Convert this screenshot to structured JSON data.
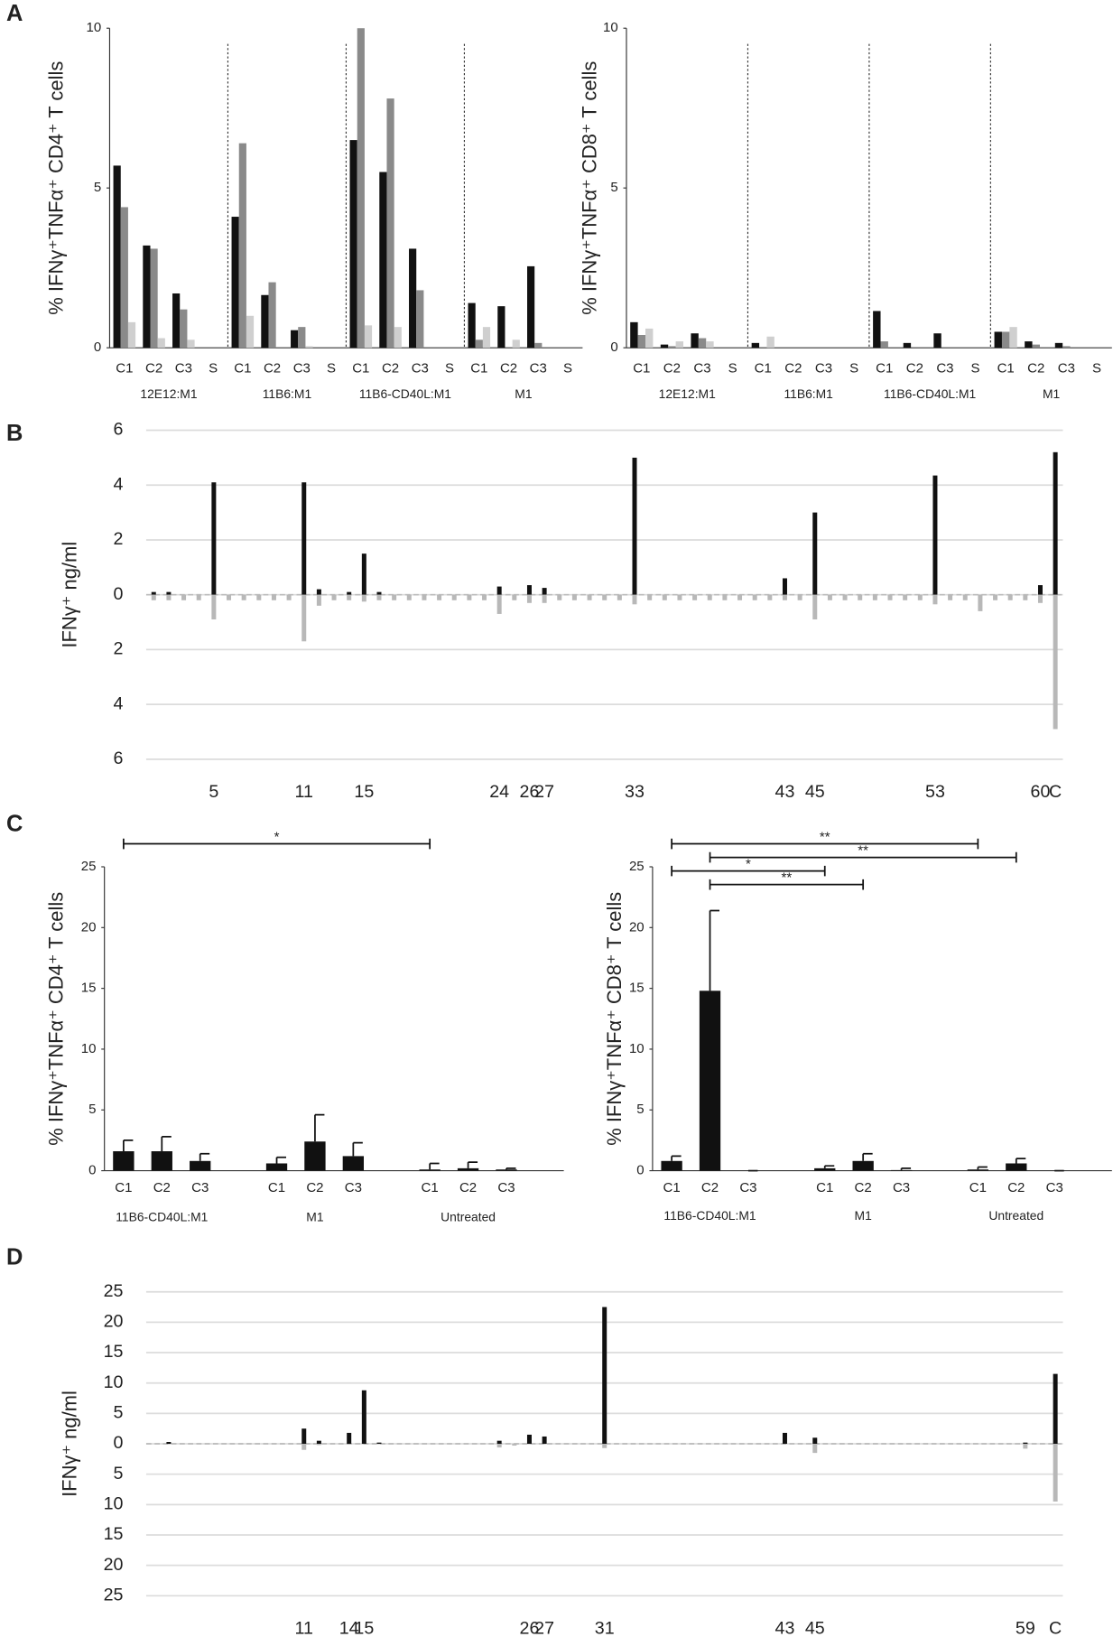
{
  "panel_labels": [
    "A",
    "B",
    "C",
    "D"
  ],
  "chart_data": [
    {
      "type": "bar",
      "ylabel": "% IFNγ⁺TNFα⁺ CD4⁺ T cells",
      "groups": [
        "12E12:M1",
        "11B6:M1",
        "11B6-CD40L:M1",
        "M1"
      ],
      "categories": [
        "C1",
        "C2",
        "C3",
        "S",
        "C1",
        "C2",
        "C3",
        "S",
        "C1",
        "C2",
        "C3",
        "S",
        "C1",
        "C2",
        "C3",
        "S"
      ],
      "ylim": [
        0,
        10
      ],
      "yticks": [
        0,
        5,
        10
      ],
      "series": [
        {
          "color": "#111111",
          "values": [
            5.7,
            3.2,
            1.7,
            0,
            4.1,
            1.65,
            0.55,
            0,
            6.5,
            5.5,
            3.1,
            0,
            1.4,
            1.3,
            2.55,
            0
          ]
        },
        {
          "color": "#8a8a8a",
          "values": [
            4.4,
            3.1,
            1.2,
            0,
            6.4,
            2.05,
            0.65,
            0,
            10,
            7.8,
            1.8,
            0,
            0.25,
            0,
            0.15,
            0
          ]
        },
        {
          "color": "#cfcfcf",
          "values": [
            0.8,
            0.3,
            0.25,
            0,
            1.0,
            0,
            0.05,
            0,
            0.7,
            0.65,
            0,
            0,
            0.65,
            0.25,
            0,
            0
          ]
        }
      ]
    },
    {
      "type": "bar",
      "ylabel": "% IFNγ⁺TNFα⁺ CD8⁺ T cells",
      "groups": [
        "12E12:M1",
        "11B6:M1",
        "11B6-CD40L:M1",
        "M1"
      ],
      "categories": [
        "C1",
        "C2",
        "C3",
        "S",
        "C1",
        "C2",
        "C3",
        "S",
        "C1",
        "C2",
        "C3",
        "S",
        "C1",
        "C2",
        "C3",
        "S"
      ],
      "ylim": [
        0,
        10
      ],
      "yticks": [
        0,
        5,
        10
      ],
      "series": [
        {
          "color": "#111111",
          "values": [
            0.8,
            0.1,
            0.45,
            0,
            0.15,
            0,
            0,
            0,
            1.15,
            0.15,
            0.45,
            0,
            0.5,
            0.2,
            0.15,
            0
          ]
        },
        {
          "color": "#8a8a8a",
          "values": [
            0.4,
            0.05,
            0.3,
            0,
            0,
            0,
            0,
            0,
            0.2,
            0,
            0,
            0,
            0.5,
            0.1,
            0.05,
            0
          ]
        },
        {
          "color": "#cfcfcf",
          "values": [
            0.6,
            0.2,
            0.2,
            0,
            0.35,
            0,
            0,
            0,
            0,
            0,
            0,
            0,
            0.65,
            0,
            0,
            0
          ]
        }
      ]
    },
    {
      "type": "diverging_bar",
      "ylabel": "IFNγ⁺ ng/ml",
      "grid": true,
      "categories": [
        null,
        null,
        null,
        null,
        "5",
        null,
        null,
        null,
        null,
        null,
        "11",
        null,
        null,
        null,
        "15",
        null,
        null,
        null,
        null,
        null,
        null,
        null,
        null,
        "24",
        null,
        "26",
        "27",
        null,
        null,
        null,
        null,
        null,
        "33",
        null,
        null,
        null,
        null,
        null,
        null,
        null,
        null,
        null,
        "43",
        null,
        "45",
        null,
        null,
        null,
        null,
        null,
        null,
        null,
        "53",
        null,
        null,
        null,
        null,
        null,
        null,
        "60",
        "C"
      ],
      "ylim": [
        -6,
        6
      ],
      "yticks": [
        6,
        4,
        2,
        0,
        {
          "value": -2,
          "label": "2"
        },
        {
          "value": -4,
          "label": "4"
        },
        {
          "value": -6,
          "label": "6"
        }
      ],
      "series": [
        {
          "color": "#111111",
          "values": [
            0.1,
            0.1,
            0,
            0,
            4.1,
            0,
            0,
            0,
            0,
            0,
            4.1,
            0.2,
            0,
            0.1,
            1.5,
            0.1,
            0,
            0,
            0,
            0,
            0,
            0,
            0,
            0.3,
            0,
            0.35,
            0.25,
            0,
            0,
            0,
            0,
            0,
            5,
            0,
            0,
            0,
            0,
            0,
            0,
            0,
            0,
            0,
            0.6,
            0,
            3,
            0,
            0,
            0,
            0,
            0,
            0,
            0,
            4.35,
            0,
            0,
            0,
            0,
            0,
            0,
            0.35,
            5.2
          ]
        },
        {
          "color": "#b8b8b8",
          "values": [
            -0.2,
            -0.2,
            -0.2,
            -0.2,
            -0.9,
            -0.2,
            -0.2,
            -0.2,
            -0.2,
            -0.2,
            -1.7,
            -0.4,
            -0.2,
            -0.2,
            -0.25,
            -0.2,
            -0.2,
            -0.2,
            -0.2,
            -0.2,
            -0.2,
            -0.2,
            -0.2,
            -0.7,
            -0.2,
            -0.3,
            -0.3,
            -0.2,
            -0.2,
            -0.2,
            -0.2,
            -0.2,
            -0.35,
            -0.2,
            -0.2,
            -0.2,
            -0.2,
            -0.2,
            -0.2,
            -0.2,
            -0.2,
            -0.2,
            -0.2,
            -0.2,
            -0.9,
            -0.2,
            -0.2,
            -0.2,
            -0.2,
            -0.2,
            -0.2,
            -0.2,
            -0.35,
            -0.2,
            -0.2,
            -0.6,
            -0.2,
            -0.2,
            -0.2,
            -0.3,
            -4.9
          ]
        }
      ]
    },
    {
      "type": "bar",
      "ylabel": "% IFNγ⁺TNFα⁺ CD4⁺ T cells",
      "groups": [
        "11B6-CD40L:M1",
        "M1",
        "Untreated"
      ],
      "categories": [
        "C1",
        "C2",
        "C3",
        "C1",
        "C2",
        "C3",
        "C1",
        "C2",
        "C3"
      ],
      "ylim": [
        0,
        25
      ],
      "yticks": [
        0,
        5,
        10,
        15,
        20,
        25
      ],
      "series": [
        {
          "color": "#111111",
          "values": [
            1.6,
            1.6,
            0.8,
            0.6,
            2.4,
            1.2,
            0.1,
            0.2,
            0.1
          ],
          "errors": [
            0.9,
            1.2,
            0.6,
            0.5,
            2.2,
            1.1,
            0.5,
            0.5,
            0.1
          ]
        }
      ],
      "annotations": [
        {
          "from": 0,
          "to": 6,
          "label": "*"
        }
      ]
    },
    {
      "type": "bar",
      "ylabel": "% IFNγ⁺TNFα⁺ CD8⁺ T cells",
      "groups": [
        "11B6-CD40L:M1",
        "M1",
        "Untreated"
      ],
      "categories": [
        "C1",
        "C2",
        "C3",
        "C1",
        "C2",
        "C3",
        "C1",
        "C2",
        "C3"
      ],
      "ylim": [
        0,
        25
      ],
      "yticks": [
        0,
        5,
        10,
        15,
        20,
        25
      ],
      "series": [
        {
          "color": "#111111",
          "values": [
            0.8,
            14.8,
            0,
            0.2,
            0.8,
            0.05,
            0.1,
            0.6,
            0
          ],
          "errors": [
            0.4,
            6.6,
            0,
            0.2,
            0.6,
            0.15,
            0.2,
            0.4,
            0
          ]
        }
      ],
      "annotations": [
        {
          "from": 0,
          "to": 6,
          "label": "**"
        },
        {
          "from": 1,
          "to": 7,
          "label": "**"
        },
        {
          "from": 0,
          "to": 3,
          "label": "*"
        },
        {
          "from": 1,
          "to": 4,
          "label": "**"
        }
      ]
    },
    {
      "type": "diverging_bar",
      "ylabel": "IFNγ⁺ ng/ml",
      "grid": true,
      "categories": [
        null,
        null,
        null,
        null,
        null,
        null,
        null,
        null,
        null,
        null,
        "11",
        null,
        null,
        "14",
        "15",
        null,
        null,
        null,
        null,
        null,
        null,
        null,
        null,
        null,
        null,
        "26",
        "27",
        null,
        null,
        null,
        "31",
        null,
        null,
        null,
        null,
        null,
        null,
        null,
        null,
        null,
        null,
        null,
        "43",
        null,
        "45",
        null,
        null,
        null,
        null,
        null,
        null,
        null,
        null,
        null,
        null,
        null,
        null,
        null,
        "59",
        null,
        "C"
      ],
      "ylim": [
        -25,
        25
      ],
      "yticks": [
        25,
        20,
        15,
        10,
        5,
        0,
        {
          "value": -5,
          "label": "5"
        },
        {
          "value": -10,
          "label": "10"
        },
        {
          "value": -15,
          "label": "15"
        },
        {
          "value": -20,
          "label": "20"
        },
        {
          "value": -25,
          "label": "25"
        }
      ],
      "series": [
        {
          "color": "#111111",
          "values": [
            0,
            0.3,
            0,
            0,
            0,
            0,
            0,
            0,
            0,
            0,
            2.5,
            0.5,
            0,
            1.8,
            8.8,
            0.2,
            0,
            0,
            0,
            0,
            0,
            0,
            0,
            0.5,
            0,
            1.5,
            1.2,
            0,
            0,
            0,
            22.5,
            0,
            0,
            0,
            0,
            0,
            0,
            0,
            0,
            0,
            0,
            0,
            1.8,
            0,
            1,
            0,
            0,
            0,
            0,
            0,
            0,
            0,
            0,
            0,
            0,
            0,
            0,
            0,
            0.2,
            0,
            11.5
          ]
        },
        {
          "color": "#b8b8b8",
          "values": [
            0,
            0,
            0,
            0,
            0,
            0,
            0,
            0,
            0,
            0,
            -1,
            -0.2,
            0,
            0,
            0,
            0,
            0,
            0,
            0,
            0,
            0,
            0,
            0,
            -0.6,
            -0.3,
            0,
            0,
            0,
            0,
            0,
            -0.7,
            0,
            0,
            0,
            0,
            0,
            0,
            0,
            0,
            0,
            0,
            0,
            0,
            0,
            -1.5,
            0,
            0,
            0,
            0,
            0,
            0,
            0,
            0,
            0,
            0,
            0,
            0,
            0,
            -0.8,
            0,
            -9.5
          ]
        }
      ]
    }
  ]
}
